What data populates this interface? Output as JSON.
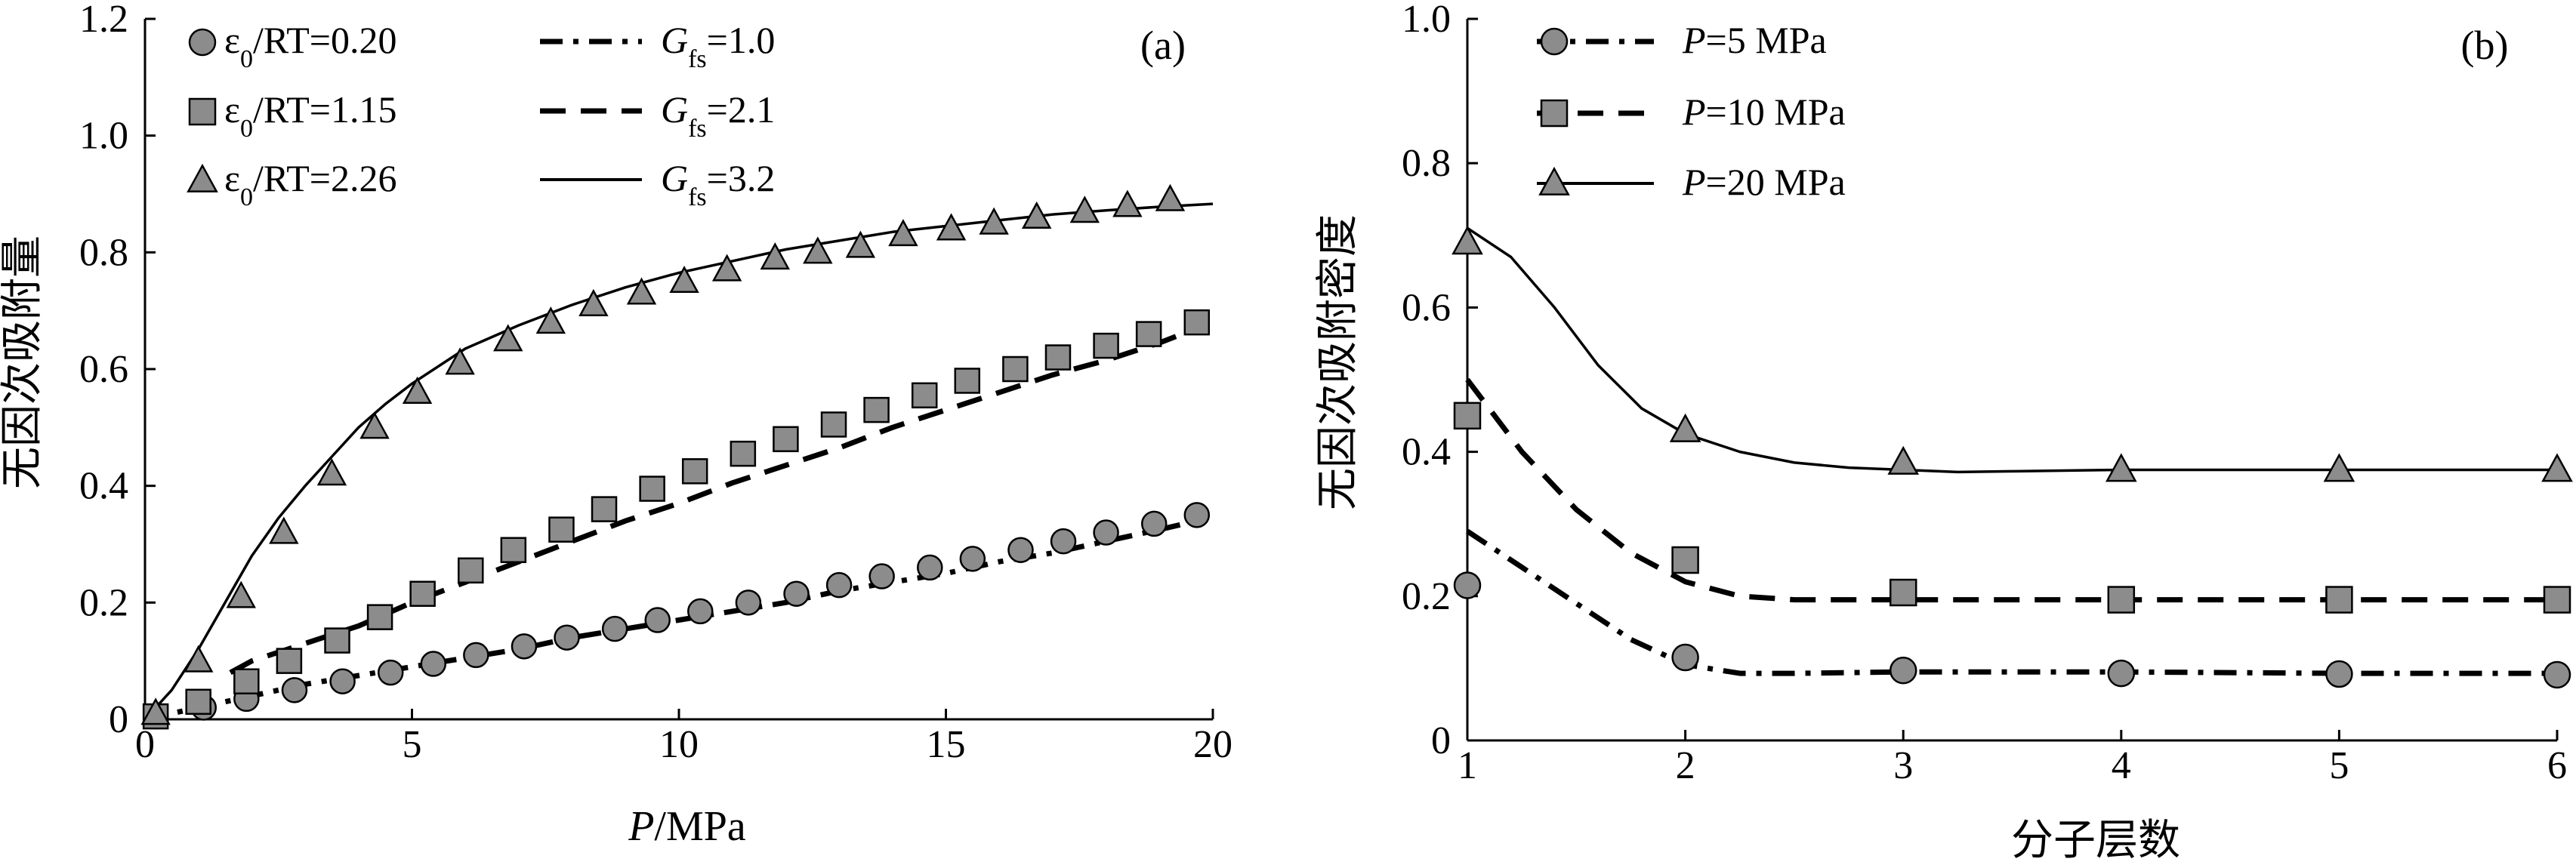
{
  "chart_data": [
    {
      "type": "scatter",
      "panel_label": "(a)",
      "xlabel": "P/MPa",
      "xlabel_var": "P",
      "xlabel_unit": "/MPa",
      "ylabel": "无因次吸附量",
      "xlim": [
        0,
        20
      ],
      "ylim": [
        0,
        1.2
      ],
      "xticks": [
        "0",
        "5",
        "10",
        "15",
        "20"
      ],
      "yticks": [
        "0",
        "0.2",
        "0.4",
        "0.6",
        "0.8",
        "1.0",
        "1.2"
      ],
      "legend_position": "top-left",
      "series": [
        {
          "name": "ε0/RT=0.20",
          "label_sym": "ε",
          "label_sub": "0",
          "label_rest": "/RT=0.20",
          "marker": "circle",
          "x": [
            0.2,
            1.1,
            1.9,
            2.8,
            3.7,
            4.6,
            5.4,
            6.2,
            7.1,
            7.9,
            8.8,
            9.6,
            10.4,
            11.3,
            12.2,
            13.0,
            13.8,
            14.7,
            15.5,
            16.4,
            17.2,
            18.0,
            18.9,
            19.7
          ],
          "y": [
            0.005,
            0.02,
            0.035,
            0.05,
            0.065,
            0.08,
            0.095,
            0.11,
            0.125,
            0.14,
            0.155,
            0.17,
            0.185,
            0.2,
            0.215,
            0.23,
            0.245,
            0.26,
            0.275,
            0.29,
            0.305,
            0.32,
            0.335,
            0.35
          ]
        },
        {
          "name": "ε0/RT=1.15",
          "label_sym": "ε",
          "label_sub": "0",
          "label_rest": "/RT=1.15",
          "marker": "square",
          "x": [
            0.2,
            1.0,
            1.9,
            2.7,
            3.6,
            4.4,
            5.2,
            6.1,
            6.9,
            7.8,
            8.6,
            9.5,
            10.3,
            11.2,
            12.0,
            12.9,
            13.7,
            14.6,
            15.4,
            16.3,
            17.1,
            18.0,
            18.8,
            19.7
          ],
          "y": [
            0.005,
            0.03,
            0.065,
            0.1,
            0.135,
            0.175,
            0.215,
            0.255,
            0.29,
            0.325,
            0.36,
            0.395,
            0.425,
            0.455,
            0.48,
            0.505,
            0.53,
            0.555,
            0.58,
            0.6,
            0.62,
            0.64,
            0.66,
            0.68
          ]
        },
        {
          "name": "ε0/RT=2.26",
          "label_sym": "ε",
          "label_sub": "0",
          "label_rest": "/RT=2.26",
          "marker": "triangle",
          "x": [
            0.2,
            1.0,
            1.8,
            2.6,
            3.5,
            4.3,
            5.1,
            5.9,
            6.8,
            7.6,
            8.4,
            9.3,
            10.1,
            10.9,
            11.8,
            12.6,
            13.4,
            14.2,
            15.1,
            15.9,
            16.7,
            17.6,
            18.4,
            19.2
          ],
          "y": [
            0.01,
            0.1,
            0.21,
            0.32,
            0.42,
            0.5,
            0.56,
            0.61,
            0.65,
            0.68,
            0.71,
            0.73,
            0.75,
            0.77,
            0.79,
            0.8,
            0.81,
            0.83,
            0.84,
            0.85,
            0.86,
            0.87,
            0.88,
            0.89
          ]
        },
        {
          "name": "Gfs=1.0",
          "label_sym": "G",
          "label_sub": "fs",
          "label_rest": "=1.0",
          "line": "dashdot",
          "x": [
            0,
            1,
            2,
            3,
            4,
            5,
            6,
            7,
            8,
            9,
            10,
            11,
            12,
            13,
            14,
            15,
            16,
            17,
            18,
            19,
            19.7
          ],
          "y": [
            0,
            0.02,
            0.04,
            0.06,
            0.075,
            0.09,
            0.105,
            0.12,
            0.14,
            0.155,
            0.17,
            0.185,
            0.2,
            0.22,
            0.235,
            0.25,
            0.27,
            0.285,
            0.305,
            0.325,
            0.34
          ]
        },
        {
          "name": "Gfs=2.1",
          "label_sym": "G",
          "label_sub": "fs",
          "label_rest": "=2.1",
          "line": "dashed",
          "x": [
            1.6,
            2,
            3,
            4,
            5,
            6,
            7,
            8,
            9,
            10,
            11,
            12,
            13,
            14,
            15,
            16,
            17,
            18,
            19,
            19.7
          ],
          "y": [
            0.08,
            0.1,
            0.13,
            0.16,
            0.2,
            0.235,
            0.27,
            0.305,
            0.34,
            0.37,
            0.405,
            0.435,
            0.465,
            0.5,
            0.53,
            0.56,
            0.59,
            0.615,
            0.645,
            0.67
          ]
        },
        {
          "name": "Gfs=3.2",
          "label_sym": "G",
          "label_sub": "fs",
          "label_rest": "=3.2",
          "line": "solid",
          "x": [
            0,
            0.5,
            1,
            1.5,
            2,
            2.5,
            3,
            3.5,
            4,
            4.5,
            5,
            6,
            7,
            8,
            9,
            10,
            11,
            12,
            13,
            14,
            15,
            16,
            17,
            18,
            19,
            20
          ],
          "y": [
            0,
            0.05,
            0.12,
            0.2,
            0.28,
            0.345,
            0.4,
            0.45,
            0.5,
            0.54,
            0.575,
            0.635,
            0.675,
            0.71,
            0.74,
            0.765,
            0.785,
            0.805,
            0.82,
            0.835,
            0.845,
            0.855,
            0.865,
            0.872,
            0.878,
            0.883
          ]
        }
      ]
    },
    {
      "type": "line",
      "panel_label": "(b)",
      "xlabel": "分子层数",
      "ylabel": "无因次吸附密度",
      "xlim": [
        1,
        6
      ],
      "ylim": [
        0,
        1.0
      ],
      "xticks": [
        "1",
        "2",
        "3",
        "4",
        "5",
        "6"
      ],
      "yticks": [
        "0",
        "0.2",
        "0.4",
        "0.6",
        "0.8",
        "1.0"
      ],
      "legend_position": "top-left",
      "series": [
        {
          "name": "P=5 MPa",
          "label_sym": "P",
          "label_rest": "=5 MPa",
          "marker": "circle",
          "line": "dashdot",
          "points_x": [
            1,
            2,
            3,
            4,
            5,
            6
          ],
          "points_y": [
            0.215,
            0.115,
            0.097,
            0.093,
            0.092,
            0.091
          ],
          "curve_x": [
            1,
            1.25,
            1.5,
            1.75,
            2,
            2.25,
            2.5,
            3,
            3.5,
            4,
            5,
            6
          ],
          "curve_y": [
            0.29,
            0.24,
            0.19,
            0.14,
            0.105,
            0.093,
            0.093,
            0.095,
            0.095,
            0.095,
            0.093,
            0.093
          ]
        },
        {
          "name": "P=10 MPa",
          "label_sym": "P",
          "label_rest": "=10 MPa",
          "marker": "square",
          "line": "dashed",
          "points_x": [
            1,
            2,
            3,
            4,
            5,
            6
          ],
          "points_y": [
            0.45,
            0.25,
            0.205,
            0.195,
            0.195,
            0.195
          ],
          "curve_x": [
            1,
            1.25,
            1.5,
            1.75,
            2,
            2.25,
            2.5,
            3,
            3.5,
            4,
            5,
            6
          ],
          "curve_y": [
            0.5,
            0.4,
            0.32,
            0.26,
            0.22,
            0.2,
            0.195,
            0.195,
            0.195,
            0.195,
            0.195,
            0.195
          ]
        },
        {
          "name": "P=20 MPa",
          "label_sym": "P",
          "label_rest": "=20 MPa",
          "marker": "triangle",
          "line": "solid",
          "points_x": [
            1,
            2,
            3,
            4,
            5,
            6
          ],
          "points_y": [
            0.69,
            0.43,
            0.385,
            0.375,
            0.375,
            0.375
          ],
          "curve_x": [
            1,
            1.2,
            1.4,
            1.6,
            1.8,
            2,
            2.25,
            2.5,
            2.75,
            3,
            3.25,
            3.5,
            4,
            5,
            6
          ],
          "curve_y": [
            0.71,
            0.67,
            0.6,
            0.52,
            0.46,
            0.425,
            0.4,
            0.385,
            0.378,
            0.375,
            0.372,
            0.373,
            0.375,
            0.375,
            0.375
          ]
        }
      ]
    }
  ]
}
